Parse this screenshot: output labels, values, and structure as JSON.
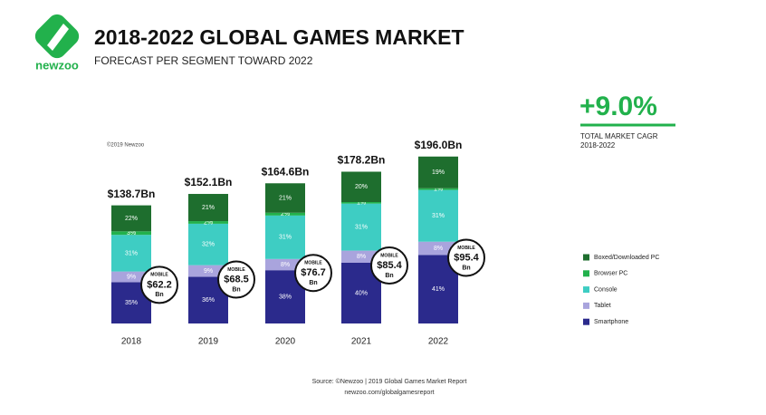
{
  "chart_data": {
    "type": "bar",
    "stacked": true,
    "logo_text": "newzoo",
    "title": "2018-2022 GLOBAL GAMES MARKET",
    "subtitle": "FORECAST PER SEGMENT TOWARD 2022",
    "copyright": "©2019 Newzoo",
    "categories": [
      "2018",
      "2019",
      "2020",
      "2021",
      "2022"
    ],
    "series": [
      {
        "name": "Smartphone",
        "color": "#2b2a8c",
        "values": [
          35,
          36,
          38,
          40,
          41
        ],
        "value_labels": [
          "35%",
          "36%",
          "38%",
          "40%",
          "41%"
        ]
      },
      {
        "name": "Tablet",
        "color": "#a9a4dd",
        "values": [
          9,
          9,
          8,
          8,
          8
        ],
        "value_labels": [
          "9%",
          "9%",
          "8%",
          "8%",
          "8%"
        ]
      },
      {
        "name": "Console",
        "color": "#3ecdc3",
        "values": [
          31,
          32,
          31,
          31,
          31
        ],
        "value_labels": [
          "31%",
          "32%",
          "31%",
          "31%",
          "31%"
        ]
      },
      {
        "name": "Browser PC",
        "color": "#22b14c",
        "values": [
          3,
          2,
          2,
          1,
          1
        ],
        "value_labels": [
          "3%",
          "2%",
          "2%",
          "1%",
          "1%"
        ]
      },
      {
        "name": "Boxed/Downloaded PC",
        "color": "#1e6e2e",
        "values": [
          22,
          21,
          21,
          20,
          19
        ],
        "value_labels": [
          "22%",
          "21%",
          "21%",
          "20%",
          "19%"
        ]
      }
    ],
    "totals": {
      "values": [
        138.7,
        152.1,
        164.6,
        178.2,
        196.0
      ],
      "value_labels": [
        "$138.7Bn",
        "$152.1Bn",
        "$164.6Bn",
        "$178.2Bn",
        "$196.0Bn"
      ]
    },
    "mobile": {
      "label": "MOBILE",
      "unit": "Bn",
      "values": [
        62.2,
        68.5,
        76.7,
        85.4,
        95.4
      ],
      "value_labels": [
        "$62.2",
        "$68.5",
        "$76.7",
        "$85.4",
        "$95.4"
      ]
    },
    "cagr": {
      "value": 9.0,
      "label": "+9.0%",
      "caption": "TOTAL MARKET CAGR",
      "period": "2018-2022"
    },
    "legend": "right",
    "source": [
      "Source: ©Newzoo | 2019 Global Games Market Report",
      "newzoo.com/globalgamesreport"
    ]
  }
}
